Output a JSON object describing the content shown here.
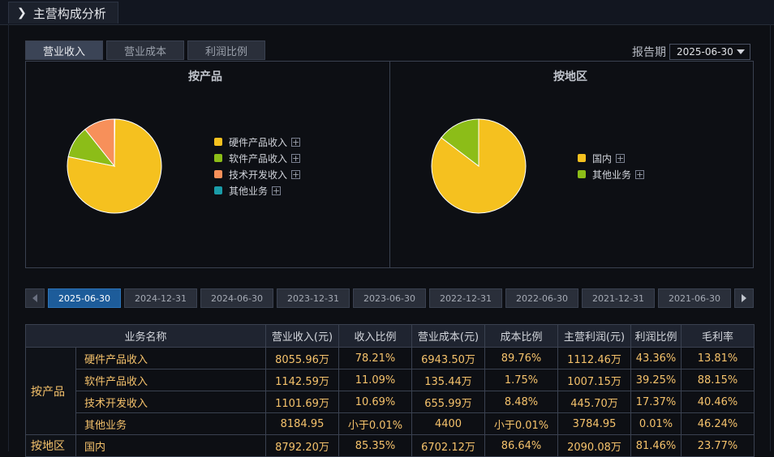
{
  "header": {
    "title": "主营构成分析",
    "icon": "chevron-right-icon"
  },
  "tabs": [
    {
      "label": "营业收入",
      "active": true
    },
    {
      "label": "营业成本",
      "active": false
    },
    {
      "label": "利润比例",
      "active": false
    }
  ],
  "period": {
    "label": "报告期",
    "value": "2025-06-30"
  },
  "product_chart": {
    "title": "按产品",
    "legend_plus": "+",
    "chart_data": {
      "type": "pie",
      "categories": [
        "硬件产品收入",
        "软件产品收入",
        "技术开发收入",
        "其他业务"
      ],
      "values": [
        78.21,
        11.09,
        10.69,
        0.01
      ],
      "colors": [
        "#f5c11f",
        "#8cbd18",
        "#f7905a",
        "#1a9ca8"
      ]
    }
  },
  "region_chart": {
    "title": "按地区",
    "legend_plus": "+",
    "chart_data": {
      "type": "pie",
      "categories": [
        "国内",
        "其他业务"
      ],
      "values": [
        85.35,
        14.65
      ],
      "colors": [
        "#f5c11f",
        "#8cbd18"
      ]
    }
  },
  "dates": [
    "2025-06-30",
    "2024-12-31",
    "2024-06-30",
    "2023-12-31",
    "2023-06-30",
    "2022-12-31",
    "2022-06-30",
    "2021-12-31",
    "2021-06-30"
  ],
  "active_date": "2025-06-30",
  "table": {
    "headers": [
      "业务名称",
      "营业收入(元)",
      "收入比例",
      "营业成本(元)",
      "成本比例",
      "主营利润(元)",
      "利润比例",
      "毛利率"
    ],
    "groups": [
      {
        "name": "按产品",
        "rows": [
          [
            "硬件产品收入",
            "8055.96万",
            "78.21%",
            "6943.50万",
            "89.76%",
            "1112.46万",
            "43.36%",
            "13.81%"
          ],
          [
            "软件产品收入",
            "1142.59万",
            "11.09%",
            "135.44万",
            "1.75%",
            "1007.15万",
            "39.25%",
            "88.15%"
          ],
          [
            "技术开发收入",
            "1101.69万",
            "10.69%",
            "655.99万",
            "8.48%",
            "445.70万",
            "17.37%",
            "40.46%"
          ],
          [
            "其他业务",
            "8184.95",
            "小于0.01%",
            "4400",
            "小于0.01%",
            "3784.95",
            "0.01%",
            "46.24%"
          ]
        ]
      },
      {
        "name": "按地区",
        "rows": [
          [
            "国内",
            "8792.20万",
            "85.35%",
            "6702.12万",
            "86.64%",
            "2090.08万",
            "81.46%",
            "23.77%"
          ]
        ]
      }
    ]
  }
}
